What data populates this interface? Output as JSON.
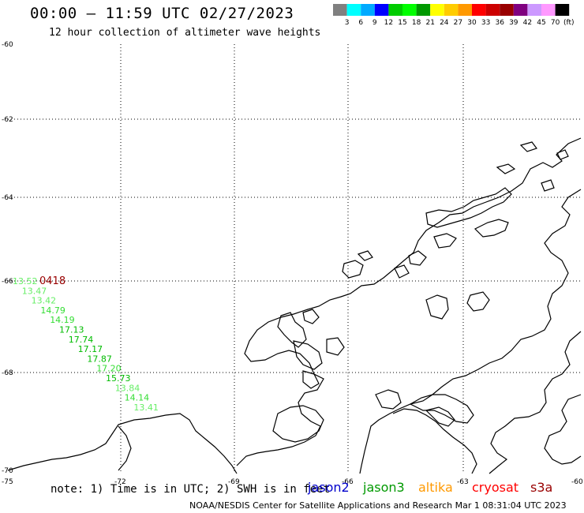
{
  "header": {
    "title": "00:00 – 11:59 UTC 02/27/2023",
    "subtitle": "12 hour collection of altimeter wave heights"
  },
  "legend": {
    "colors": [
      "#808080",
      "#00ffff",
      "#00aaff",
      "#0000ff",
      "#00cc00",
      "#00ff00",
      "#009900",
      "#ffff00",
      "#ffcc00",
      "#ff9900",
      "#ff0000",
      "#cc0000",
      "#990000",
      "#800080",
      "#cc99ff",
      "#ff99ff",
      "#000000"
    ],
    "labels": [
      "3",
      "6",
      "9",
      "12",
      "15",
      "18",
      "21",
      "24",
      "27",
      "30",
      "33",
      "36",
      "39",
      "42",
      "45",
      "70"
    ],
    "unit": "(ft)"
  },
  "axes": {
    "lon_labels": [
      "-75",
      "-72",
      "-69",
      "-66",
      "-63",
      "-60"
    ],
    "lat_labels": [
      "-60",
      "-62",
      "-64",
      "-66",
      "-68",
      "-70"
    ]
  },
  "track": {
    "time_label": "0418",
    "time_color": "#990000",
    "points": [
      {
        "value": "13.52",
        "color": "#66ee66"
      },
      {
        "value": "13.47",
        "color": "#66ee66"
      },
      {
        "value": "13.42",
        "color": "#66ee66"
      },
      {
        "value": "14.79",
        "color": "#33dd33"
      },
      {
        "value": "14.19",
        "color": "#33dd33"
      },
      {
        "value": "17.13",
        "color": "#00bb00"
      },
      {
        "value": "17.74",
        "color": "#00bb00"
      },
      {
        "value": "17.17",
        "color": "#00bb00"
      },
      {
        "value": "17.87",
        "color": "#00bb00"
      },
      {
        "value": "17.20",
        "color": "#33dd33"
      },
      {
        "value": "15.73",
        "color": "#00bb00"
      },
      {
        "value": "13.84",
        "color": "#66ee66"
      },
      {
        "value": "14.14",
        "color": "#33dd33"
      },
      {
        "value": "13.41",
        "color": "#66ee66"
      }
    ]
  },
  "footer": {
    "note": "note:  1) Time is in UTC;  2) SWH is in feet",
    "satellites": [
      {
        "name": "jason2",
        "color": "#0000cc"
      },
      {
        "name": "jason3",
        "color": "#009900"
      },
      {
        "name": "altika",
        "color": "#ff9900"
      },
      {
        "name": "cryosat",
        "color": "#ff0000"
      },
      {
        "name": "s3a",
        "color": "#990000"
      }
    ],
    "credit": "NOAA/NESDIS Center for Satellite Applications and Research    Mar  1 08:31:04 UTC 2023"
  }
}
